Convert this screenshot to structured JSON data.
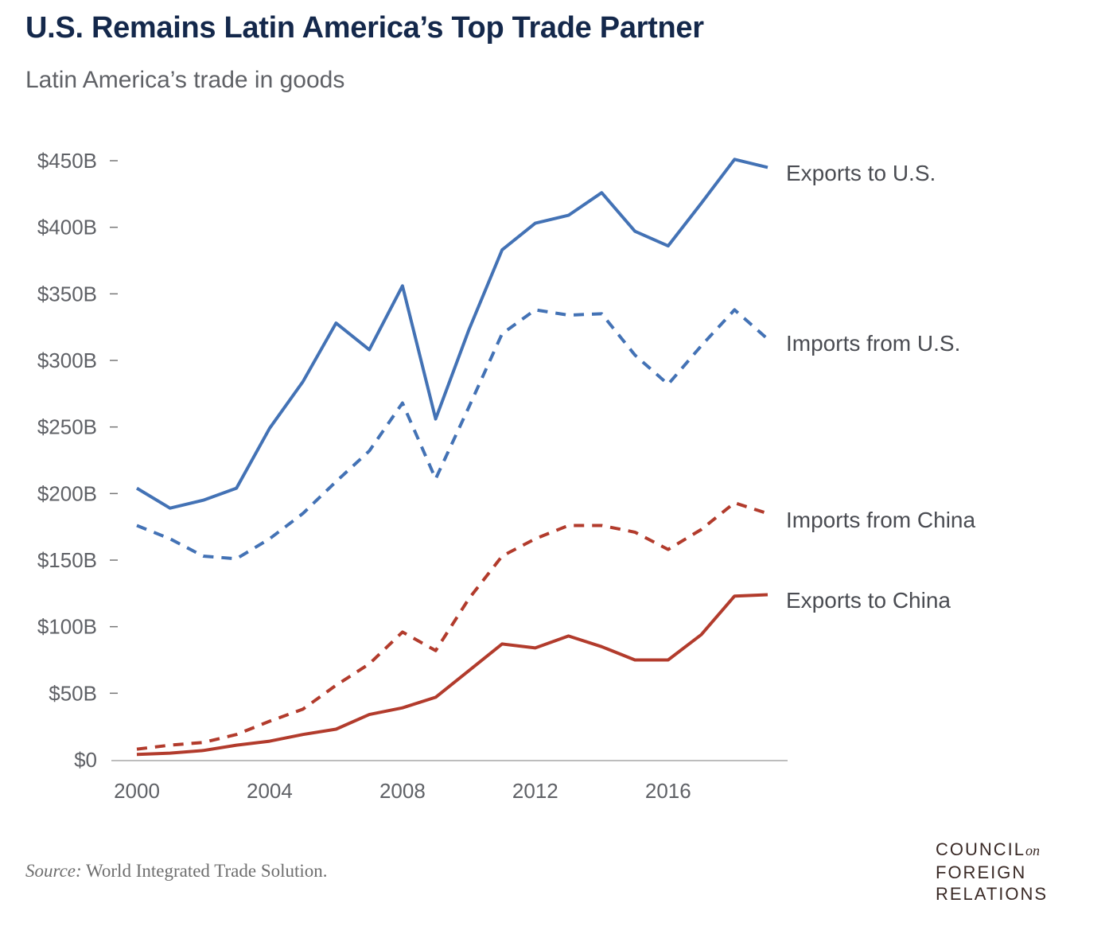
{
  "header": {
    "title": "U.S. Remains Latin America’s Top Trade Partner",
    "subtitle": "Latin America’s trade in goods"
  },
  "footer": {
    "source_label": "Source:",
    "source_text": " World Integrated Trade Solution.",
    "logo_line1": "COUNCIL",
    "logo_on": "on",
    "logo_line2": "FOREIGN",
    "logo_line3": "RELATIONS"
  },
  "chart_data": {
    "type": "line",
    "title": "U.S. Remains Latin America’s Top Trade Partner",
    "subtitle": "Latin America’s trade in goods",
    "xlabel": "",
    "ylabel": "",
    "x": [
      2000,
      2001,
      2002,
      2003,
      2004,
      2005,
      2006,
      2007,
      2008,
      2009,
      2010,
      2011,
      2012,
      2013,
      2014,
      2015,
      2016,
      2017,
      2018,
      2019
    ],
    "xlim": [
      2000,
      2019
    ],
    "ylim": [
      0,
      450
    ],
    "x_ticks": [
      2000,
      2004,
      2008,
      2012,
      2016
    ],
    "x_tick_labels": [
      "2000",
      "2004",
      "2008",
      "2012",
      "2016"
    ],
    "y_ticks": [
      0,
      50,
      100,
      150,
      200,
      250,
      300,
      350,
      400,
      450
    ],
    "y_tick_labels": [
      "$0",
      "$50B",
      "$100B",
      "$150B",
      "$200B",
      "$250B",
      "$300B",
      "$350B",
      "$400B",
      "$450B"
    ],
    "grid": false,
    "legend": "direct labels at right",
    "series": [
      {
        "name": "Exports to U.S.",
        "color": "#4372b5",
        "dash": false,
        "values": [
          204,
          189,
          195,
          204,
          249,
          284,
          328,
          308,
          356,
          256,
          323,
          383,
          403,
          409,
          426,
          397,
          386,
          418,
          451,
          445
        ]
      },
      {
        "name": "Imports from U.S.",
        "color": "#4372b5",
        "dash": true,
        "values": [
          176,
          166,
          153,
          151,
          166,
          185,
          209,
          232,
          268,
          211,
          265,
          320,
          338,
          334,
          335,
          304,
          282,
          311,
          338,
          316
        ]
      },
      {
        "name": "Imports from China",
        "color": "#b23b2c",
        "dash": true,
        "values": [
          8,
          11,
          13,
          19,
          29,
          38,
          56,
          72,
          96,
          82,
          121,
          153,
          166,
          176,
          176,
          171,
          158,
          173,
          193,
          185
        ]
      },
      {
        "name": "Exports to China",
        "color": "#b23b2c",
        "dash": false,
        "values": [
          4,
          5,
          7,
          11,
          14,
          19,
          23,
          34,
          39,
          47,
          67,
          87,
          84,
          93,
          85,
          75,
          75,
          94,
          123,
          124
        ]
      }
    ]
  }
}
